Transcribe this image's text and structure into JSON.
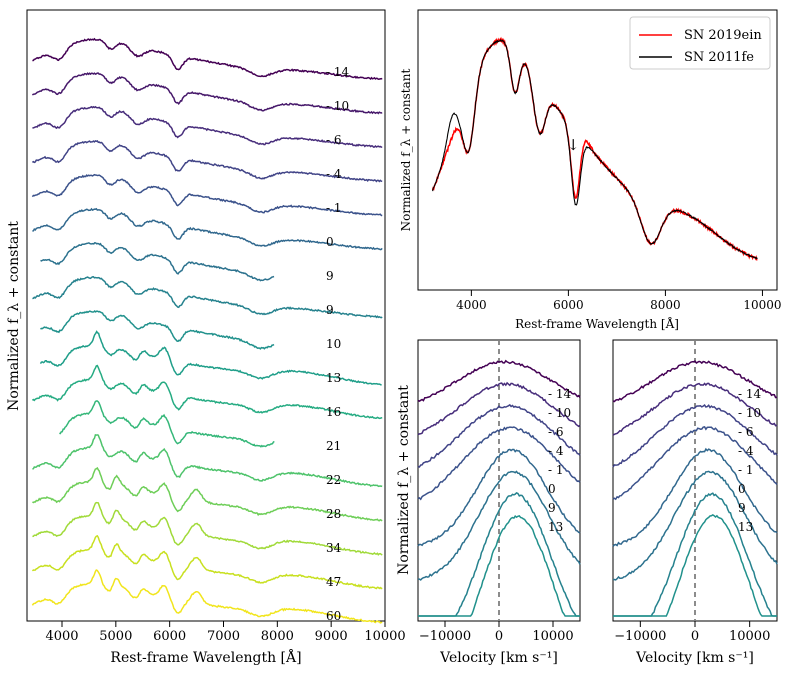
{
  "colors": {
    "sn2019ein": "#ff0000",
    "sn2011fe": "#000000",
    "zero_line": "#808080"
  },
  "chart_data": [
    {
      "id": "left",
      "type": "line",
      "xlabel": "Rest-frame Wavelength [Å]",
      "ylabel": "Normalized f_λ + constant",
      "xlim": [
        3350,
        10000
      ],
      "xticks": [
        "4000",
        "5000",
        "6000",
        "7000",
        "8000",
        "9000",
        "10000"
      ],
      "xtick_values": [
        4000,
        5000,
        6000,
        7000,
        8000,
        9000,
        10000
      ],
      "series": [
        {
          "name": "- 14",
          "color": "#440154",
          "x_range": [
            3450,
            9950
          ],
          "offset": 0
        },
        {
          "name": "- 10",
          "color": "#46186a",
          "x_range": [
            3450,
            9950
          ],
          "offset": 1
        },
        {
          "name": "- 6",
          "color": "#472d7b",
          "x_range": [
            3450,
            9950
          ],
          "offset": 2
        },
        {
          "name": "- 4",
          "color": "#414487",
          "x_range": [
            3450,
            9950
          ],
          "offset": 3
        },
        {
          "name": "- 1",
          "color": "#3b528b",
          "x_range": [
            3450,
            9950
          ],
          "offset": 4
        },
        {
          "name": "0",
          "color": "#31688e",
          "x_range": [
            3450,
            9950
          ],
          "offset": 5
        },
        {
          "name": "9",
          "color": "#2c728e",
          "x_range": [
            3600,
            7950
          ],
          "offset": 6
        },
        {
          "name": "9",
          "color": "#26828e",
          "x_range": [
            3450,
            9950
          ],
          "offset": 7
        },
        {
          "name": "10",
          "color": "#21918c",
          "x_range": [
            3600,
            7950
          ],
          "offset": 8
        },
        {
          "name": "13",
          "color": "#1f9e89",
          "x_range": [
            3600,
            9950
          ],
          "offset": 9
        },
        {
          "name": "16",
          "color": "#25ab82",
          "x_range": [
            3450,
            9950
          ],
          "offset": 10
        },
        {
          "name": "21",
          "color": "#35b779",
          "x_range": [
            3950,
            7950
          ],
          "offset": 11
        },
        {
          "name": "22",
          "color": "#4ec36b",
          "x_range": [
            3450,
            9950
          ],
          "offset": 12
        },
        {
          "name": "28",
          "color": "#6ece58",
          "x_range": [
            3450,
            9950
          ],
          "offset": 13
        },
        {
          "name": "34",
          "color": "#a0da39",
          "x_range": [
            3450,
            9950
          ],
          "offset": 14
        },
        {
          "name": "47",
          "color": "#c8e020",
          "x_range": [
            3450,
            9950
          ],
          "offset": 15
        },
        {
          "name": "60",
          "color": "#f1e51d",
          "x_range": [
            3450,
            9950
          ],
          "offset": 16
        }
      ]
    },
    {
      "id": "top-right",
      "type": "line",
      "xlabel": "Rest-frame Wavelength [Å]",
      "ylabel": "Normalized f_λ + constant",
      "xlim": [
        2900,
        10300
      ],
      "xticks": [
        "4000",
        "6000",
        "8000",
        "10000"
      ],
      "xtick_values": [
        4000,
        6000,
        8000,
        10000
      ],
      "annotation": "↓",
      "annotation_x": 6100,
      "legend": "top-right",
      "series": [
        {
          "name": "SN 2019ein",
          "color": "#ff0000",
          "x_range": [
            3200,
            9900
          ]
        },
        {
          "name": "SN 2011fe",
          "color": "#000000",
          "x_range": [
            3200,
            9900
          ]
        }
      ]
    },
    {
      "id": "bottom-middle",
      "type": "line",
      "xlabel": "Velocity [km s⁻¹]",
      "ylabel": "Normalized f_λ + constant",
      "xlim": [
        -15000,
        15000
      ],
      "xticks": [
        "−10000",
        "0",
        "10000"
      ],
      "xtick_values": [
        -10000,
        0,
        10000
      ],
      "series": [
        {
          "name": "- 14",
          "color": "#440154"
        },
        {
          "name": "- 10",
          "color": "#472d7b"
        },
        {
          "name": "- 6",
          "color": "#414487"
        },
        {
          "name": "- 4",
          "color": "#3b528b"
        },
        {
          "name": "- 1",
          "color": "#31688e"
        },
        {
          "name": "0",
          "color": "#2c728e"
        },
        {
          "name": "9",
          "color": "#26828e"
        },
        {
          "name": "13",
          "color": "#21918c"
        }
      ]
    },
    {
      "id": "bottom-right",
      "type": "line",
      "xlabel": "Velocity [km s⁻¹]",
      "xlim": [
        -15000,
        15000
      ],
      "xticks": [
        "−10000",
        "0",
        "10000"
      ],
      "xtick_values": [
        -10000,
        0,
        10000
      ],
      "series": [
        {
          "name": "- 14",
          "color": "#440154"
        },
        {
          "name": "- 10",
          "color": "#472d7b"
        },
        {
          "name": "- 6",
          "color": "#414487"
        },
        {
          "name": "- 4",
          "color": "#3b528b"
        },
        {
          "name": "- 1",
          "color": "#31688e"
        },
        {
          "name": "0",
          "color": "#2c728e"
        },
        {
          "name": "9",
          "color": "#26828e"
        },
        {
          "name": "13",
          "color": "#21918c"
        }
      ]
    }
  ]
}
